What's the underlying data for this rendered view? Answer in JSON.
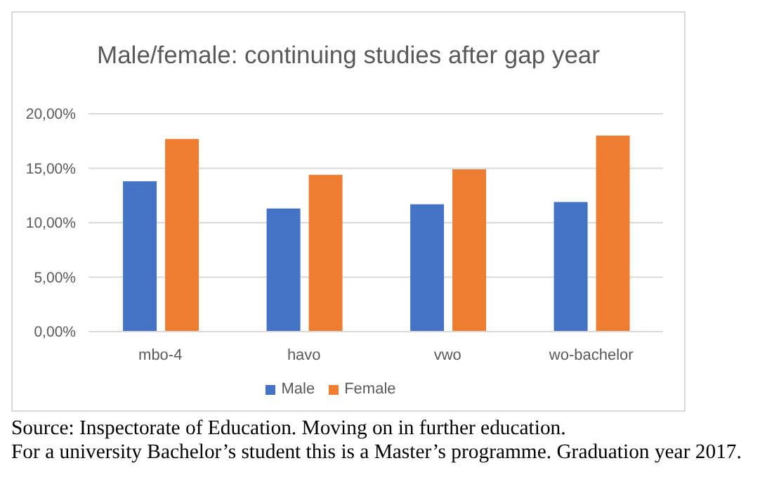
{
  "chart_data": {
    "type": "bar",
    "title": "Male/female: continuing studies after gap year",
    "categories": [
      "mbo-4",
      "havo",
      "vwo",
      "wo-bachelor"
    ],
    "series": [
      {
        "name": "Male",
        "color": "#4472c4",
        "values": [
          13.8,
          11.3,
          11.7,
          11.9
        ]
      },
      {
        "name": "Female",
        "color": "#ed7d31",
        "values": [
          17.7,
          14.4,
          14.9,
          18.0
        ]
      }
    ],
    "ylim": [
      0,
      20
    ],
    "yticks": [
      {
        "value": 0,
        "label": "0,00%"
      },
      {
        "value": 5,
        "label": "5,00%"
      },
      {
        "value": 10,
        "label": "10,00%"
      },
      {
        "value": 15,
        "label": "15,00%"
      },
      {
        "value": 20,
        "label": "20,00%"
      }
    ],
    "grid": "y",
    "legend": "bottom",
    "annotations": [
      "Source: Inspectorate of Education. Moving on in further education.",
      "For a university Bachelor’s student this is a Master’s programme. Graduation year 2017."
    ]
  }
}
